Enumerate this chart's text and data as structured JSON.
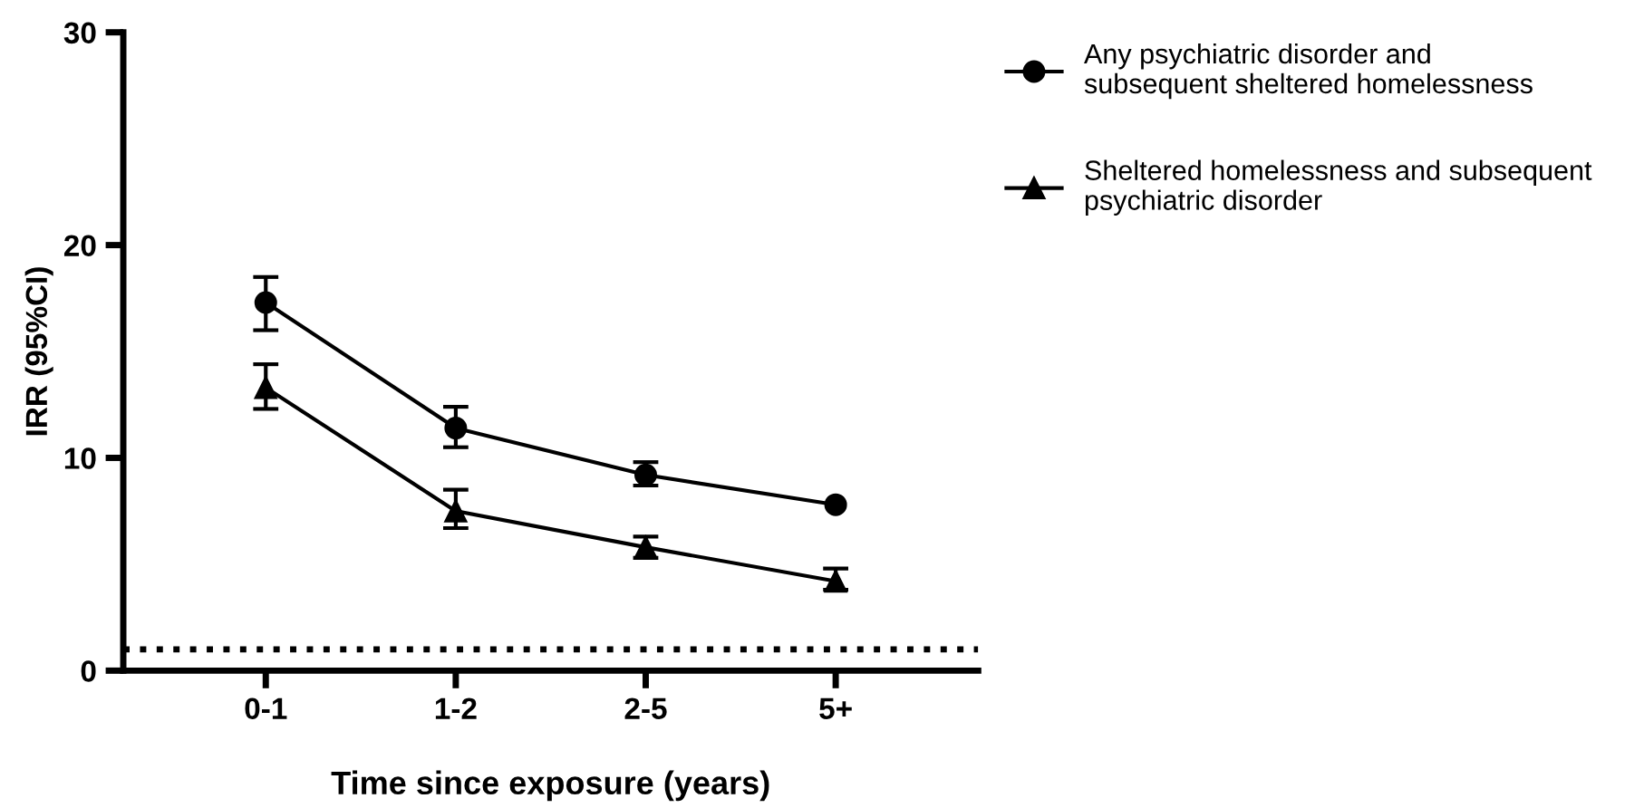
{
  "chart_data": {
    "type": "line",
    "xlabel": "Time since exposure (years)",
    "ylabel": "IRR (95%CI)",
    "categories": [
      "0-1",
      "1-2",
      "2-5",
      "5+"
    ],
    "series": [
      {
        "name": "Any psychiatric disorder and\nsubsequent sheltered homelessness",
        "color": "#000000",
        "marker": "circle",
        "values": [
          17.3,
          11.4,
          9.2,
          7.8
        ],
        "errors": [
          [
            16.0,
            18.5
          ],
          [
            10.5,
            12.4
          ],
          [
            8.7,
            9.8
          ],
          null
        ]
      },
      {
        "name": "Sheltered homelessness and subsequent\npsychiatric disorder",
        "color": "#000000",
        "marker": "triangle",
        "values": [
          13.3,
          7.5,
          5.8,
          4.2
        ],
        "errors": [
          [
            12.3,
            14.4
          ],
          [
            6.7,
            8.5
          ],
          [
            5.3,
            6.3
          ],
          [
            3.8,
            4.8
          ]
        ]
      }
    ],
    "ylim": [
      0,
      30
    ],
    "yticks": [
      0,
      10,
      20,
      30
    ],
    "ref_lines": [
      {
        "axis": "y",
        "value": 1,
        "line_style": "dotted",
        "color": "#000000"
      }
    ],
    "grid": false,
    "legend": "top right",
    "line_style": "solid"
  }
}
